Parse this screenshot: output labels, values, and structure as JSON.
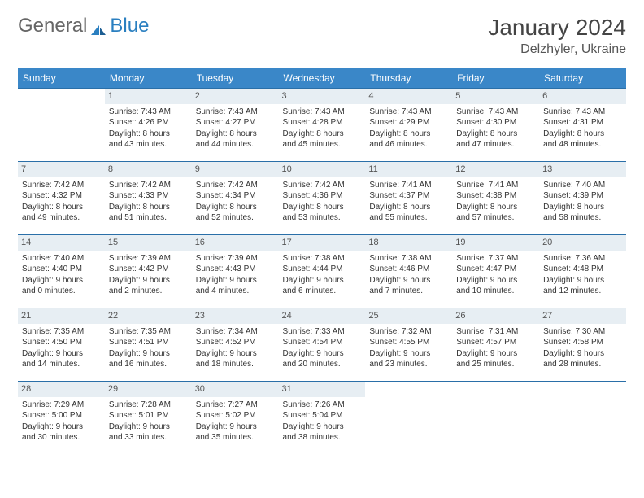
{
  "logo": {
    "part1": "General",
    "part2": "Blue"
  },
  "title": "January 2024",
  "location": "Delzhyler, Ukraine",
  "colors": {
    "header_bg": "#3a87c8",
    "header_text": "#ffffff",
    "row_border": "#2a6fa8",
    "daynum_bg": "#e7eef3",
    "daynum_text": "#555555",
    "body_text": "#333333",
    "logo_gray": "#666666",
    "logo_blue": "#2a7fc0"
  },
  "typography": {
    "title_fontsize": 28,
    "location_fontsize": 16,
    "header_fontsize": 12,
    "daynum_fontsize": 11,
    "cell_fontsize": 10
  },
  "day_headers": [
    "Sunday",
    "Monday",
    "Tuesday",
    "Wednesday",
    "Thursday",
    "Friday",
    "Saturday"
  ],
  "weeks": [
    [
      {
        "n": "",
        "empty": true
      },
      {
        "n": "1",
        "sr": "Sunrise: 7:43 AM",
        "ss": "Sunset: 4:26 PM",
        "d1": "Daylight: 8 hours",
        "d2": "and 43 minutes."
      },
      {
        "n": "2",
        "sr": "Sunrise: 7:43 AM",
        "ss": "Sunset: 4:27 PM",
        "d1": "Daylight: 8 hours",
        "d2": "and 44 minutes."
      },
      {
        "n": "3",
        "sr": "Sunrise: 7:43 AM",
        "ss": "Sunset: 4:28 PM",
        "d1": "Daylight: 8 hours",
        "d2": "and 45 minutes."
      },
      {
        "n": "4",
        "sr": "Sunrise: 7:43 AM",
        "ss": "Sunset: 4:29 PM",
        "d1": "Daylight: 8 hours",
        "d2": "and 46 minutes."
      },
      {
        "n": "5",
        "sr": "Sunrise: 7:43 AM",
        "ss": "Sunset: 4:30 PM",
        "d1": "Daylight: 8 hours",
        "d2": "and 47 minutes."
      },
      {
        "n": "6",
        "sr": "Sunrise: 7:43 AM",
        "ss": "Sunset: 4:31 PM",
        "d1": "Daylight: 8 hours",
        "d2": "and 48 minutes."
      }
    ],
    [
      {
        "n": "7",
        "sr": "Sunrise: 7:42 AM",
        "ss": "Sunset: 4:32 PM",
        "d1": "Daylight: 8 hours",
        "d2": "and 49 minutes."
      },
      {
        "n": "8",
        "sr": "Sunrise: 7:42 AM",
        "ss": "Sunset: 4:33 PM",
        "d1": "Daylight: 8 hours",
        "d2": "and 51 minutes."
      },
      {
        "n": "9",
        "sr": "Sunrise: 7:42 AM",
        "ss": "Sunset: 4:34 PM",
        "d1": "Daylight: 8 hours",
        "d2": "and 52 minutes."
      },
      {
        "n": "10",
        "sr": "Sunrise: 7:42 AM",
        "ss": "Sunset: 4:36 PM",
        "d1": "Daylight: 8 hours",
        "d2": "and 53 minutes."
      },
      {
        "n": "11",
        "sr": "Sunrise: 7:41 AM",
        "ss": "Sunset: 4:37 PM",
        "d1": "Daylight: 8 hours",
        "d2": "and 55 minutes."
      },
      {
        "n": "12",
        "sr": "Sunrise: 7:41 AM",
        "ss": "Sunset: 4:38 PM",
        "d1": "Daylight: 8 hours",
        "d2": "and 57 minutes."
      },
      {
        "n": "13",
        "sr": "Sunrise: 7:40 AM",
        "ss": "Sunset: 4:39 PM",
        "d1": "Daylight: 8 hours",
        "d2": "and 58 minutes."
      }
    ],
    [
      {
        "n": "14",
        "sr": "Sunrise: 7:40 AM",
        "ss": "Sunset: 4:40 PM",
        "d1": "Daylight: 9 hours",
        "d2": "and 0 minutes."
      },
      {
        "n": "15",
        "sr": "Sunrise: 7:39 AM",
        "ss": "Sunset: 4:42 PM",
        "d1": "Daylight: 9 hours",
        "d2": "and 2 minutes."
      },
      {
        "n": "16",
        "sr": "Sunrise: 7:39 AM",
        "ss": "Sunset: 4:43 PM",
        "d1": "Daylight: 9 hours",
        "d2": "and 4 minutes."
      },
      {
        "n": "17",
        "sr": "Sunrise: 7:38 AM",
        "ss": "Sunset: 4:44 PM",
        "d1": "Daylight: 9 hours",
        "d2": "and 6 minutes."
      },
      {
        "n": "18",
        "sr": "Sunrise: 7:38 AM",
        "ss": "Sunset: 4:46 PM",
        "d1": "Daylight: 9 hours",
        "d2": "and 7 minutes."
      },
      {
        "n": "19",
        "sr": "Sunrise: 7:37 AM",
        "ss": "Sunset: 4:47 PM",
        "d1": "Daylight: 9 hours",
        "d2": "and 10 minutes."
      },
      {
        "n": "20",
        "sr": "Sunrise: 7:36 AM",
        "ss": "Sunset: 4:48 PM",
        "d1": "Daylight: 9 hours",
        "d2": "and 12 minutes."
      }
    ],
    [
      {
        "n": "21",
        "sr": "Sunrise: 7:35 AM",
        "ss": "Sunset: 4:50 PM",
        "d1": "Daylight: 9 hours",
        "d2": "and 14 minutes."
      },
      {
        "n": "22",
        "sr": "Sunrise: 7:35 AM",
        "ss": "Sunset: 4:51 PM",
        "d1": "Daylight: 9 hours",
        "d2": "and 16 minutes."
      },
      {
        "n": "23",
        "sr": "Sunrise: 7:34 AM",
        "ss": "Sunset: 4:52 PM",
        "d1": "Daylight: 9 hours",
        "d2": "and 18 minutes."
      },
      {
        "n": "24",
        "sr": "Sunrise: 7:33 AM",
        "ss": "Sunset: 4:54 PM",
        "d1": "Daylight: 9 hours",
        "d2": "and 20 minutes."
      },
      {
        "n": "25",
        "sr": "Sunrise: 7:32 AM",
        "ss": "Sunset: 4:55 PM",
        "d1": "Daylight: 9 hours",
        "d2": "and 23 minutes."
      },
      {
        "n": "26",
        "sr": "Sunrise: 7:31 AM",
        "ss": "Sunset: 4:57 PM",
        "d1": "Daylight: 9 hours",
        "d2": "and 25 minutes."
      },
      {
        "n": "27",
        "sr": "Sunrise: 7:30 AM",
        "ss": "Sunset: 4:58 PM",
        "d1": "Daylight: 9 hours",
        "d2": "and 28 minutes."
      }
    ],
    [
      {
        "n": "28",
        "sr": "Sunrise: 7:29 AM",
        "ss": "Sunset: 5:00 PM",
        "d1": "Daylight: 9 hours",
        "d2": "and 30 minutes."
      },
      {
        "n": "29",
        "sr": "Sunrise: 7:28 AM",
        "ss": "Sunset: 5:01 PM",
        "d1": "Daylight: 9 hours",
        "d2": "and 33 minutes."
      },
      {
        "n": "30",
        "sr": "Sunrise: 7:27 AM",
        "ss": "Sunset: 5:02 PM",
        "d1": "Daylight: 9 hours",
        "d2": "and 35 minutes."
      },
      {
        "n": "31",
        "sr": "Sunrise: 7:26 AM",
        "ss": "Sunset: 5:04 PM",
        "d1": "Daylight: 9 hours",
        "d2": "and 38 minutes."
      },
      {
        "n": "",
        "empty": true
      },
      {
        "n": "",
        "empty": true
      },
      {
        "n": "",
        "empty": true
      }
    ]
  ]
}
